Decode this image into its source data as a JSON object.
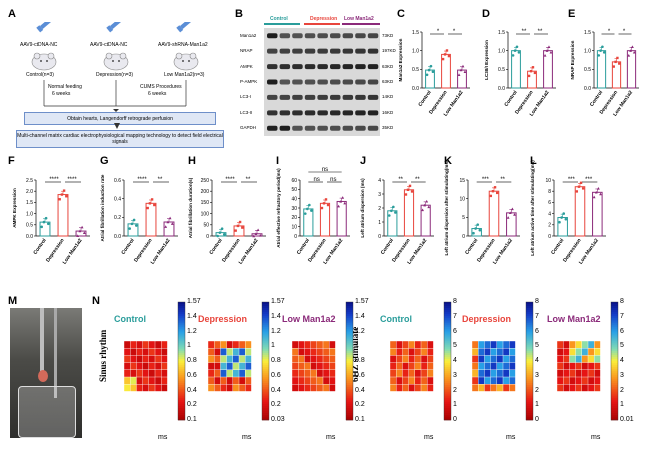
{
  "panels": {
    "A": "A",
    "B": "B",
    "C": "C",
    "D": "D",
    "E": "E",
    "F": "F",
    "G": "G",
    "H": "H",
    "I": "I",
    "J": "J",
    "K": "K",
    "L": "L",
    "M": "M",
    "N": "N"
  },
  "panelA": {
    "vector1": "AAV9-ctDNA-NC",
    "vector2": "AAV9-ctDNA-NC",
    "vector3": "AAV9-shRNA-Man1a2",
    "group1": "Control(n=3)",
    "group2": "Depression(n=3)",
    "group3": "Low Man1a2(n=3)",
    "step1a": "Normal feeding",
    "step1b": "6 weeks",
    "step2a": "CUMS Procedures",
    "step2b": "6 weeks",
    "box1": "Obtain hearts, Langendorff retrograde perfusion",
    "box2": "Multi-channel matrix cardiac electrophysiological mapping technology to detect field electrical signals"
  },
  "panelB": {
    "groups": [
      "Control",
      "Depression",
      "Low Man1a2"
    ],
    "group_colors": [
      "#2a9d9b",
      "#e8453c",
      "#8b2a7a"
    ],
    "rows": [
      "Man1a2",
      "NRAP",
      "AMPK",
      "P-AMPK",
      "LC3-I",
      "LC3-II",
      "GAPDH"
    ],
    "kd": [
      "73KD",
      "197KD",
      "63KD",
      "63KD",
      "14KD",
      "16KD",
      "35KD"
    ]
  },
  "colors": {
    "control": "#2a9d9b",
    "depression": "#e8453c",
    "low": "#8b2a7a",
    "flow_border": "#6e8fc9",
    "flow_fill": "#dfe7f5"
  },
  "chart_data": [
    {
      "id": "C",
      "type": "bar",
      "categories": [
        "Control",
        "Depression",
        "Low Man1a2"
      ],
      "ylabel": "Man1a2 Expression",
      "ylim": [
        0,
        1.5
      ],
      "yticks": [
        "0.0",
        "0.5",
        "1.0",
        "1.5"
      ],
      "values": [
        0.48,
        0.9,
        0.48
      ],
      "sig": [
        "*",
        "*"
      ]
    },
    {
      "id": "D",
      "type": "bar",
      "categories": [
        "Control",
        "Depression",
        "Low Man1a2"
      ],
      "ylabel": "LC3II/I Expression",
      "ylim": [
        0,
        1.5
      ],
      "yticks": [
        "0.0",
        "0.5",
        "1.0",
        "1.5"
      ],
      "values": [
        1.0,
        0.45,
        1.0
      ],
      "sig": [
        "**",
        "**"
      ]
    },
    {
      "id": "E",
      "type": "bar",
      "categories": [
        "Control",
        "Depression",
        "Low Man1a2"
      ],
      "ylabel": "NRAP Expression",
      "ylim": [
        0,
        1.5
      ],
      "yticks": [
        "0.0",
        "0.5",
        "1.0",
        "1.5"
      ],
      "values": [
        1.0,
        0.7,
        1.0
      ],
      "sig": [
        "*",
        "*"
      ]
    },
    {
      "id": "F",
      "type": "bar",
      "categories": [
        "Control",
        "Depression",
        "Low Man1a2"
      ],
      "ylabel": "AMPK Expression",
      "ylim": [
        0,
        2.5
      ],
      "yticks": [
        "0.0",
        "0.5",
        "1.0",
        "1.5",
        "2.0",
        "2.5"
      ],
      "values": [
        0.62,
        1.85,
        0.22
      ],
      "sig": [
        "****",
        "****"
      ]
    },
    {
      "id": "G",
      "type": "bar",
      "categories": [
        "Control",
        "Depression",
        "Low Man1a2"
      ],
      "ylabel": "Atrial fibrillation induction rate",
      "ylim": [
        0,
        0.6
      ],
      "yticks": [
        "0.0",
        "0.2",
        "0.4",
        "0.6"
      ],
      "values": [
        0.13,
        0.35,
        0.15
      ],
      "sig": [
        "****",
        "**"
      ]
    },
    {
      "id": "H",
      "type": "bar",
      "categories": [
        "Control",
        "Depression",
        "Low Man1a2"
      ],
      "ylabel": "Atrial fibrillation duration(s)",
      "ylim": [
        0,
        250
      ],
      "yticks": [
        "0",
        "50",
        "100",
        "150",
        "200",
        "250"
      ],
      "values": [
        15,
        45,
        10
      ],
      "sig": [
        "****",
        "**"
      ]
    },
    {
      "id": "I",
      "type": "bar",
      "categories": [
        "Control",
        "Depression",
        "Low Man1a2"
      ],
      "ylabel": "Atrial effective refractory period(ms)",
      "ylim": [
        0,
        60
      ],
      "yticks": [
        "0",
        "10",
        "20",
        "30",
        "40",
        "50",
        "60"
      ],
      "values": [
        29,
        35,
        37
      ],
      "sig": [
        "ns",
        "ns",
        "ns"
      ]
    },
    {
      "id": "J",
      "type": "bar",
      "categories": [
        "Control",
        "Depression",
        "Low Man1a2"
      ],
      "ylabel": "Left atrium dispersion (ms)",
      "ylim": [
        0,
        4
      ],
      "yticks": [
        "0",
        "1",
        "2",
        "3",
        "4"
      ],
      "values": [
        1.8,
        3.3,
        2.2
      ],
      "sig": [
        "**",
        "**"
      ]
    },
    {
      "id": "K",
      "type": "bar",
      "categories": [
        "Control",
        "Depression",
        "Low Man1a2"
      ],
      "ylabel": "Left atrium dispersion after stimulating(ms)",
      "ylim": [
        0,
        15
      ],
      "yticks": [
        "0",
        "5",
        "10",
        "15"
      ],
      "values": [
        2.0,
        12.0,
        6.2
      ],
      "sig": [
        "***",
        "**"
      ]
    },
    {
      "id": "L",
      "type": "bar",
      "categories": [
        "Control",
        "Depression",
        "Low Man1a2"
      ],
      "ylabel": "Left atrium active time after stimulating(ms)",
      "ylim": [
        0,
        10
      ],
      "yticks": [
        "0",
        "2",
        "4",
        "6",
        "8",
        "10"
      ],
      "values": [
        3.3,
        8.8,
        7.8
      ],
      "sig": [
        "***",
        "***"
      ]
    }
  ],
  "panelN": {
    "row1_label": "Sinus rhythm",
    "row2_label": "6HZ stimulate",
    "titles": [
      "Control",
      "Depression",
      "Low Man1a2",
      "Control",
      "Depression",
      "Low Man1a2"
    ],
    "scale1": [
      "1.57",
      "1.4",
      "1.2",
      "1",
      "0.8",
      "0.6",
      "0.4",
      "0.2",
      "0.1"
    ],
    "scale2": [
      "1.57",
      "1.4",
      "1.2",
      "1",
      "0.8",
      "0.6",
      "0.4",
      "0.2",
      "0.03"
    ],
    "scale3": [
      "1.57",
      "1.4",
      "1.2",
      "1",
      "0.8",
      "0.6",
      "0.4",
      "0.2",
      "0.1"
    ],
    "scale4": [
      "8",
      "7",
      "6",
      "5",
      "4",
      "3",
      "2",
      "1",
      "0"
    ],
    "scale5": [
      "8",
      "7",
      "6",
      "5",
      "4",
      "3",
      "2",
      "1",
      "0"
    ],
    "scale6": [
      "8",
      "7",
      "6",
      "5",
      "4",
      "3",
      "2",
      "1",
      "0.01"
    ],
    "unit": "ms"
  }
}
